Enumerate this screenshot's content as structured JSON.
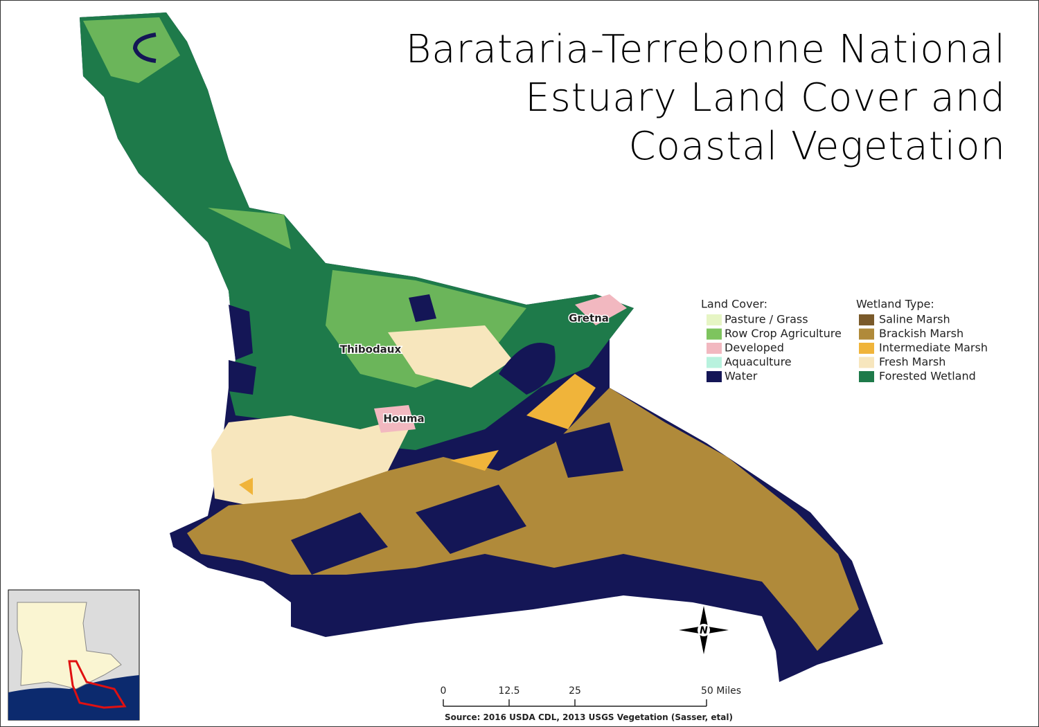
{
  "title": [
    "Barataria-Terrebonne National",
    "Estuary Land Cover and",
    "Coastal Vegetation"
  ],
  "legend": {
    "land_cover": {
      "header": "Land Cover:",
      "items": [
        {
          "label": "Pasture / Grass",
          "color": "#e6f5c4"
        },
        {
          "label": "Row Crop Agriculture",
          "color": "#7ec45e"
        },
        {
          "label": "Developed",
          "color": "#f2b8c0"
        },
        {
          "label": "Aquaculture",
          "color": "#b8f2de"
        },
        {
          "label": "Water",
          "color": "#141656"
        }
      ]
    },
    "wetland_type": {
      "header": "Wetland Type:",
      "items": [
        {
          "label": "Saline Marsh",
          "color": "#7a5a2a"
        },
        {
          "label": "Brackish Marsh",
          "color": "#b08a3a"
        },
        {
          "label": "Intermediate Marsh",
          "color": "#f0b43a"
        },
        {
          "label": "Fresh Marsh",
          "color": "#f7e6bd"
        },
        {
          "label": "Forested Wetland",
          "color": "#1e7a4a"
        }
      ]
    }
  },
  "cities": [
    "Thibodaux",
    "Gretna",
    "Houma"
  ],
  "north_arrow": "N",
  "scale_bar": {
    "ticks": [
      0,
      12.5,
      25,
      {
        "value": 50,
        "label": "50 Miles"
      }
    ]
  },
  "source": "Source: 2016 USDA CDL, 2013 USGS Vegetation (Sasser, etal)"
}
